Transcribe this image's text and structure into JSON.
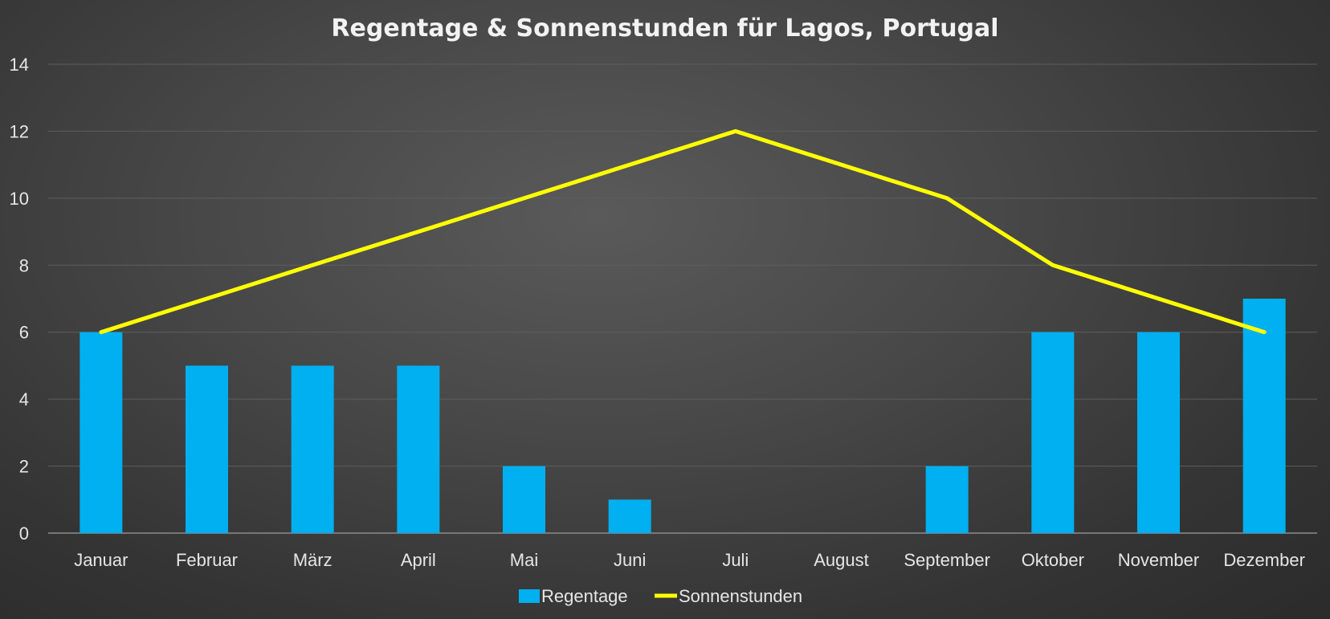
{
  "chart_data": {
    "type": "bar",
    "title": "Regentage & Sonnenstunden für Lagos, Portugal",
    "categories": [
      "Januar",
      "Februar",
      "März",
      "April",
      "Mai",
      "Juni",
      "Juli",
      "August",
      "September",
      "Oktober",
      "November",
      "Dezember"
    ],
    "series": [
      {
        "name": "Regentage",
        "type": "bar",
        "color": "#00b0f0",
        "values": [
          6,
          5,
          5,
          5,
          2,
          1,
          0,
          0,
          2,
          6,
          6,
          7
        ]
      },
      {
        "name": "Sonnenstunden",
        "type": "line",
        "color": "#ffff00",
        "values": [
          6,
          7,
          8,
          9,
          10,
          11,
          12,
          11,
          10,
          8,
          7,
          6
        ]
      }
    ],
    "ylim": [
      0,
      14
    ],
    "yticks": [
      0,
      2,
      4,
      6,
      8,
      10,
      12,
      14
    ],
    "grid": true,
    "legend": "bottom-center"
  }
}
